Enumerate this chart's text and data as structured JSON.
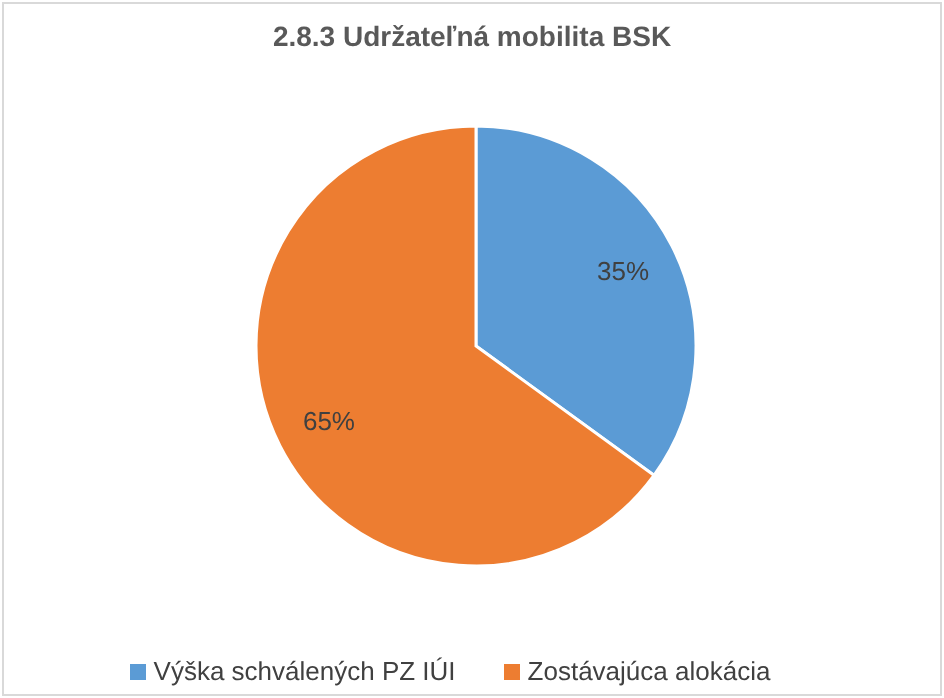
{
  "chart_data": {
    "type": "pie",
    "title": "2.8.3 Udržateľná mobilita BSK",
    "categories": [
      "Výška schválených PZ IÚI",
      "Zostávajúca alokácia"
    ],
    "values": [
      35,
      65
    ],
    "colors": [
      "#5b9bd5",
      "#ed7d31"
    ],
    "value_labels": [
      "35%",
      "65%"
    ],
    "legend": "bottom"
  }
}
